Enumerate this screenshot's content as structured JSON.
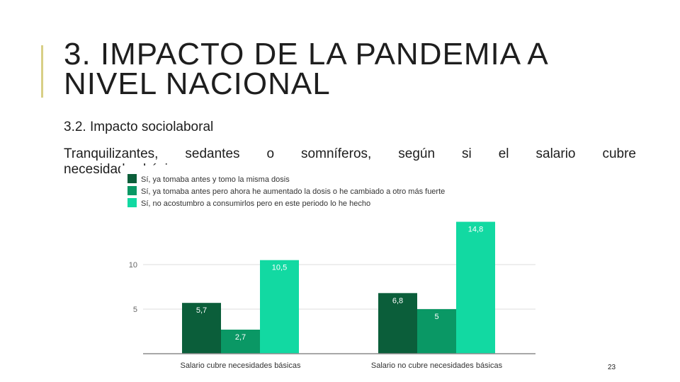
{
  "slide": {
    "title_line1": "3. IMPACTO DE LA PANDEMIA A",
    "title_line2": "NIVEL NACIONAL",
    "subtitle": "3.2. Impacto sociolaboral",
    "body_line1": "Tranquilizantes, sedantes o somníferos, según si el salario cubre",
    "body_line2": "necesidades básicas",
    "page_number": "23",
    "accent_color": "#d8cf86"
  },
  "chart_data": {
    "type": "bar",
    "categories": [
      "Salario cubre necesidades básicas",
      "Salario no cubre necesidades básicas"
    ],
    "series": [
      {
        "name": "Sí, ya tomaba antes y tomo la misma dosis",
        "color": "#0b5e3a",
        "values": [
          5.7,
          6.8
        ],
        "labels": [
          "5,7",
          "6,8"
        ]
      },
      {
        "name": "Sí, ya tomaba antes pero ahora he aumentado la dosis o he cambiado a otro más fuerte",
        "color": "#0a9865",
        "values": [
          2.7,
          5
        ],
        "labels": [
          "2,7",
          "5"
        ]
      },
      {
        "name": "Sí, no acostumbro a consumirlos pero en este periodo lo he hecho",
        "color": "#12d9a2",
        "values": [
          10.5,
          14.8
        ],
        "labels": [
          "10,5",
          "14,8"
        ]
      }
    ],
    "ylim": [
      0,
      15
    ],
    "yticks": [
      5,
      10
    ],
    "ytick_labels": [
      "5",
      "10"
    ],
    "grid": true,
    "legend_position": "top-left"
  }
}
